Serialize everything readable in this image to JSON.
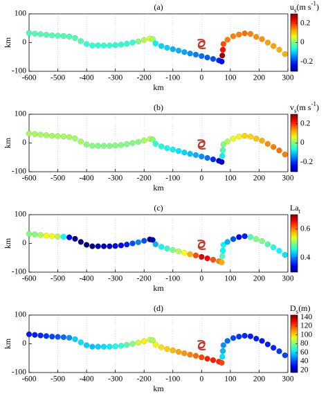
{
  "chart_data": [
    {
      "type": "scatter",
      "title": "(a)",
      "xlabel": "km",
      "ylabel": "km",
      "colormap": "jet",
      "grid": true,
      "xlim": [
        -600,
        300
      ],
      "xticks": [
        -600,
        -500,
        -400,
        -300,
        -200,
        -100,
        0,
        100,
        200,
        300
      ],
      "ylim": [
        -100,
        100
      ],
      "yticks": [
        -100,
        0,
        100
      ],
      "x": [
        -600,
        -580,
        -560,
        -540,
        -520,
        -500,
        -480,
        -460,
        -440,
        -420,
        -400,
        -380,
        -360,
        -340,
        -320,
        -300,
        -280,
        -260,
        -240,
        -220,
        -200,
        -180,
        -170,
        -160,
        -140,
        -120,
        -100,
        -80,
        -60,
        -40,
        -20,
        0,
        20,
        40,
        60,
        70,
        72,
        74,
        76,
        90,
        110,
        130,
        150,
        170,
        190,
        210,
        230,
        250,
        270,
        290
      ],
      "y": [
        33,
        31,
        29,
        27,
        25,
        24,
        23,
        21,
        16,
        5,
        -5,
        -10,
        -10,
        -10,
        -10,
        -9,
        -7,
        -4,
        0,
        4,
        9,
        14,
        12,
        -3,
        -12,
        -18,
        -23,
        -28,
        -33,
        -38,
        -42,
        -47,
        -52,
        -57,
        -62,
        -66,
        -45,
        -25,
        -5,
        10,
        22,
        28,
        32,
        30,
        20,
        12,
        0,
        -12,
        -25,
        -40
      ],
      "color_values": [
        -0.03,
        -0.03,
        -0.03,
        -0.03,
        -0.03,
        -0.03,
        -0.03,
        -0.03,
        -0.03,
        -0.03,
        -0.05,
        -0.05,
        -0.05,
        -0.05,
        -0.05,
        -0.05,
        -0.05,
        -0.05,
        -0.05,
        0.0,
        0.03,
        0.05,
        0.02,
        -0.08,
        -0.1,
        -0.1,
        -0.12,
        -0.12,
        -0.13,
        -0.14,
        -0.15,
        -0.16,
        -0.17,
        -0.18,
        -0.2,
        -0.22,
        0.28,
        0.22,
        0.18,
        0.15,
        0.15,
        0.15,
        0.16,
        0.15,
        0.14,
        0.14,
        0.13,
        0.13,
        0.12,
        0.12
      ],
      "colorbar": {
        "lim": [
          -0.3,
          0.3
        ],
        "ticks": [
          0.2,
          0,
          -0.2
        ],
        "label": [
          {
            "text": "u",
            "style": "normal"
          },
          {
            "text": "s",
            "style": "sub"
          },
          {
            "text": "(m s",
            "style": "normal"
          },
          {
            "text": "-1",
            "style": "sup"
          },
          {
            "text": ")",
            "style": "normal"
          }
        ]
      }
    },
    {
      "type": "scatter",
      "title": "(b)",
      "xlabel": "km",
      "ylabel": "km",
      "colormap": "jet",
      "grid": true,
      "xlim": [
        -600,
        300
      ],
      "xticks": [
        -600,
        -500,
        -400,
        -300,
        -200,
        -100,
        0,
        100,
        200,
        300
      ],
      "ylim": [
        -100,
        100
      ],
      "yticks": [
        -100,
        0,
        100
      ],
      "x": [
        -600,
        -580,
        -560,
        -540,
        -520,
        -500,
        -480,
        -460,
        -440,
        -420,
        -400,
        -380,
        -360,
        -340,
        -320,
        -300,
        -280,
        -260,
        -240,
        -220,
        -200,
        -180,
        -170,
        -160,
        -140,
        -120,
        -100,
        -80,
        -60,
        -40,
        -20,
        0,
        20,
        40,
        60,
        70,
        72,
        74,
        76,
        90,
        110,
        130,
        150,
        170,
        190,
        210,
        230,
        250,
        270,
        290
      ],
      "y": [
        33,
        31,
        29,
        27,
        25,
        24,
        23,
        21,
        16,
        5,
        -5,
        -10,
        -10,
        -10,
        -10,
        -9,
        -7,
        -4,
        0,
        4,
        9,
        14,
        12,
        -3,
        -12,
        -18,
        -23,
        -28,
        -33,
        -38,
        -42,
        -47,
        -52,
        -57,
        -62,
        -66,
        -45,
        -25,
        -5,
        5,
        15,
        22,
        25,
        22,
        15,
        8,
        -3,
        -14,
        -26,
        -40
      ],
      "color_values": [
        0.02,
        0.02,
        0.02,
        0.02,
        0.02,
        0.02,
        0.02,
        0.02,
        0.02,
        0.02,
        0.0,
        0.0,
        0.0,
        0.0,
        0.0,
        0.0,
        0.0,
        0.0,
        0.0,
        0.0,
        0.02,
        0.03,
        0.0,
        -0.05,
        -0.06,
        -0.07,
        -0.08,
        -0.09,
        -0.1,
        -0.11,
        -0.12,
        -0.14,
        -0.16,
        -0.2,
        -0.24,
        -0.26,
        -0.08,
        -0.03,
        0.0,
        0.03,
        0.06,
        0.08,
        0.1,
        0.1,
        0.11,
        0.12,
        0.14,
        0.15,
        0.16,
        0.15
      ],
      "colorbar": {
        "lim": [
          -0.3,
          0.3
        ],
        "ticks": [
          0.2,
          0,
          -0.2
        ],
        "label": [
          {
            "text": "v",
            "style": "normal"
          },
          {
            "text": "s",
            "style": "sub"
          },
          {
            "text": "(m s",
            "style": "normal"
          },
          {
            "text": "-1",
            "style": "sup"
          },
          {
            "text": ")",
            "style": "normal"
          }
        ]
      }
    },
    {
      "type": "scatter",
      "title": "(c)",
      "xlabel": "km",
      "ylabel": "km",
      "colormap": "jet",
      "grid": true,
      "xlim": [
        -600,
        300
      ],
      "xticks": [
        -600,
        -500,
        -400,
        -300,
        -200,
        -100,
        0,
        100,
        200,
        300
      ],
      "ylim": [
        -100,
        100
      ],
      "yticks": [
        -100,
        0,
        100
      ],
      "x": [
        -600,
        -580,
        -560,
        -540,
        -520,
        -500,
        -480,
        -460,
        -440,
        -420,
        -400,
        -380,
        -360,
        -340,
        -320,
        -300,
        -280,
        -260,
        -240,
        -220,
        -200,
        -180,
        -170,
        -160,
        -140,
        -120,
        -100,
        -80,
        -60,
        -40,
        -20,
        0,
        20,
        40,
        60,
        70,
        72,
        74,
        76,
        90,
        110,
        130,
        150,
        170,
        190,
        210,
        230,
        250,
        270,
        290
      ],
      "y": [
        33,
        31,
        29,
        27,
        25,
        24,
        23,
        21,
        16,
        5,
        -5,
        -10,
        -10,
        -10,
        -10,
        -9,
        -7,
        -4,
        0,
        4,
        9,
        14,
        12,
        -3,
        -12,
        -18,
        -23,
        -28,
        -33,
        -38,
        -42,
        -47,
        -52,
        -57,
        -62,
        -66,
        -45,
        -25,
        -5,
        5,
        15,
        22,
        25,
        22,
        15,
        8,
        -3,
        -14,
        -26,
        -40
      ],
      "color_values": [
        0.5,
        0.5,
        0.52,
        0.55,
        0.55,
        0.52,
        0.45,
        0.35,
        0.3,
        0.3,
        0.3,
        0.3,
        0.32,
        0.32,
        0.33,
        0.34,
        0.35,
        0.36,
        0.38,
        0.4,
        0.38,
        0.3,
        0.32,
        0.42,
        0.45,
        0.47,
        0.5,
        0.52,
        0.55,
        0.58,
        0.62,
        0.66,
        0.65,
        0.62,
        0.6,
        0.58,
        0.48,
        0.45,
        0.45,
        0.42,
        0.38,
        0.35,
        0.36,
        0.48,
        0.5,
        0.5,
        0.48,
        0.46,
        0.45,
        0.44
      ],
      "colorbar": {
        "lim": [
          0.3,
          0.7
        ],
        "ticks": [
          0.6,
          0.4
        ],
        "label": [
          {
            "text": "La",
            "style": "normal"
          },
          {
            "text": "t",
            "style": "sub"
          }
        ]
      }
    },
    {
      "type": "scatter",
      "title": "(d)",
      "xlabel": "km",
      "ylabel": "km",
      "colormap": "jet",
      "grid": true,
      "xlim": [
        -600,
        300
      ],
      "xticks": [
        -600,
        -500,
        -400,
        -300,
        -200,
        -100,
        0,
        100,
        200,
        300
      ],
      "ylim": [
        -100,
        100
      ],
      "yticks": [
        -100,
        0,
        100
      ],
      "x": [
        -600,
        -580,
        -560,
        -540,
        -520,
        -500,
        -480,
        -460,
        -440,
        -420,
        -400,
        -380,
        -360,
        -340,
        -320,
        -300,
        -280,
        -260,
        -240,
        -220,
        -200,
        -180,
        -170,
        -160,
        -140,
        -120,
        -100,
        -80,
        -60,
        -40,
        -20,
        0,
        20,
        40,
        60,
        70,
        72,
        74,
        76,
        90,
        110,
        130,
        150,
        170,
        190,
        210,
        230,
        250,
        270,
        290
      ],
      "y": [
        33,
        31,
        29,
        27,
        25,
        24,
        23,
        21,
        16,
        5,
        -5,
        -10,
        -10,
        -10,
        -10,
        -9,
        -7,
        -4,
        0,
        4,
        9,
        14,
        12,
        -3,
        -12,
        -18,
        -23,
        -28,
        -33,
        -38,
        -42,
        -47,
        -52,
        -57,
        -62,
        -66,
        -45,
        -25,
        -5,
        10,
        20,
        25,
        28,
        26,
        18,
        10,
        -2,
        -14,
        -26,
        -40
      ],
      "color_values": [
        35,
        35,
        36,
        38,
        40,
        42,
        45,
        50,
        58,
        60,
        58,
        56,
        58,
        60,
        62,
        66,
        70,
        75,
        80,
        90,
        98,
        88,
        85,
        95,
        100,
        102,
        105,
        108,
        110,
        112,
        115,
        120,
        125,
        126,
        124,
        120,
        60,
        55,
        50,
        45,
        40,
        38,
        36,
        35,
        35,
        34,
        35,
        36,
        38,
        40
      ],
      "colorbar": {
        "lim": [
          15,
          145
        ],
        "ticks": [
          20,
          40,
          60,
          80,
          100,
          120,
          140
        ],
        "label": [
          {
            "text": "D",
            "style": "normal"
          },
          {
            "text": "s",
            "style": "sub"
          },
          {
            "text": "(m)",
            "style": "normal"
          }
        ]
      }
    }
  ]
}
